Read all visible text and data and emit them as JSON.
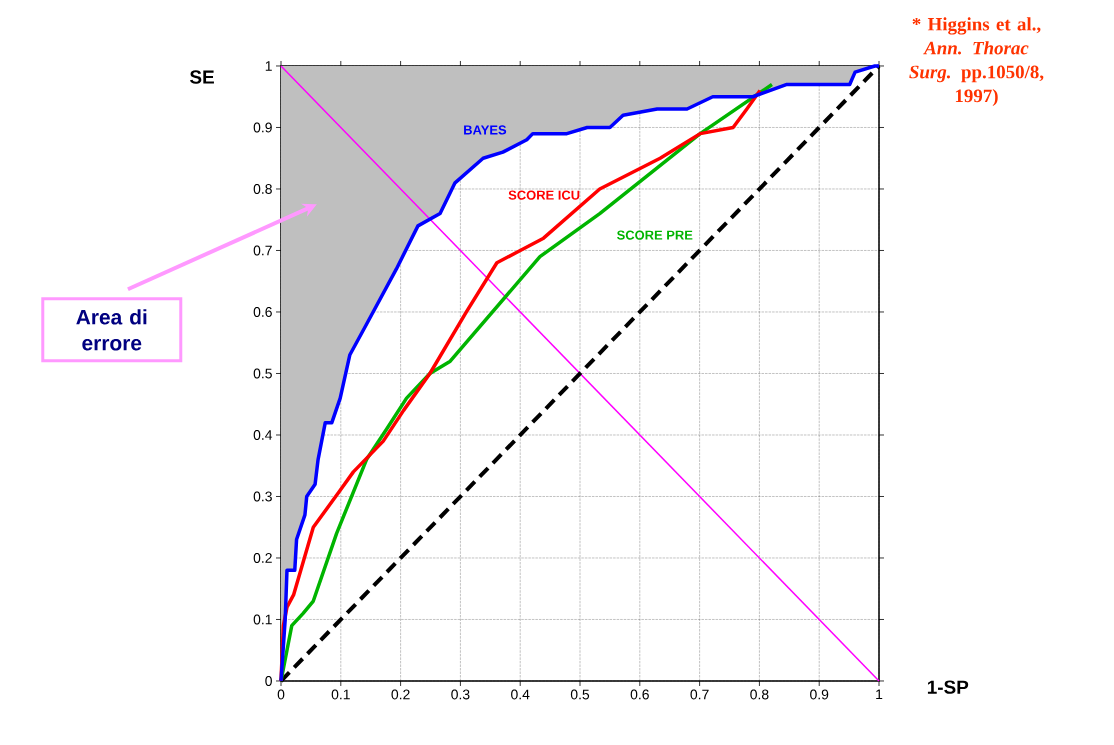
{
  "chart_data": {
    "type": "line",
    "xlabel": "1-SP",
    "ylabel": "SE",
    "xlim": [
      0,
      1
    ],
    "ylim": [
      0,
      1
    ],
    "xticks": [
      0,
      0.1,
      0.2,
      0.3,
      0.4,
      0.5,
      0.6,
      0.7,
      0.8,
      0.9,
      1
    ],
    "yticks": [
      0,
      0.1,
      0.2,
      0.3,
      0.4,
      0.5,
      0.6,
      0.7,
      0.8,
      0.9,
      1
    ],
    "grid": true,
    "series": [
      {
        "name": "BAYES",
        "color": "#0000ff",
        "x": [
          0,
          0.007,
          0.01,
          0.023,
          0.026,
          0.04,
          0.043,
          0.057,
          0.062,
          0.074,
          0.085,
          0.099,
          0.115,
          0.143,
          0.193,
          0.229,
          0.266,
          0.291,
          0.338,
          0.371,
          0.411,
          0.421,
          0.478,
          0.512,
          0.55,
          0.572,
          0.629,
          0.679,
          0.722,
          0.789,
          0.846,
          0.951,
          0.96,
          0.993,
          1
        ],
        "values": [
          0,
          0.1,
          0.18,
          0.18,
          0.23,
          0.27,
          0.3,
          0.32,
          0.36,
          0.42,
          0.42,
          0.46,
          0.53,
          0.58,
          0.67,
          0.74,
          0.76,
          0.81,
          0.85,
          0.86,
          0.88,
          0.89,
          0.89,
          0.9,
          0.9,
          0.92,
          0.93,
          0.93,
          0.95,
          0.95,
          0.97,
          0.97,
          0.99,
          1,
          1
        ]
      },
      {
        "name": "SCORE ICU",
        "color": "#ff0000",
        "x": [
          0,
          0.004,
          0.01,
          0.021,
          0.054,
          0.099,
          0.121,
          0.171,
          0.205,
          0.249,
          0.31,
          0.361,
          0.439,
          0.533,
          0.634,
          0.701,
          0.756,
          0.779,
          0.801
        ],
        "values": [
          0,
          0.09,
          0.12,
          0.14,
          0.25,
          0.31,
          0.34,
          0.39,
          0.44,
          0.5,
          0.6,
          0.68,
          0.72,
          0.8,
          0.85,
          0.89,
          0.9,
          0.93,
          0.96
        ]
      },
      {
        "name": "SCORE PRE",
        "color": "#00b400",
        "x": [
          0,
          0.01,
          0.018,
          0.037,
          0.054,
          0.093,
          0.143,
          0.177,
          0.21,
          0.249,
          0.283,
          0.433,
          0.533,
          0.701,
          0.821
        ],
        "values": [
          0,
          0.05,
          0.09,
          0.11,
          0.13,
          0.24,
          0.36,
          0.41,
          0.46,
          0.5,
          0.52,
          0.69,
          0.76,
          0.89,
          0.97
        ]
      },
      {
        "color": "#000000",
        "line_style": "dashed",
        "x": [
          0,
          1
        ],
        "values": [
          0,
          1
        ]
      },
      {
        "color": "#ff00ff",
        "x": [
          0,
          1
        ],
        "values": [
          1,
          0
        ]
      }
    ],
    "annotations": [
      "Area di errore",
      "* Higgins et al.,",
      "*Ann. Thorac Surg.* pp.1050/8, 1997)"
    ]
  }
}
